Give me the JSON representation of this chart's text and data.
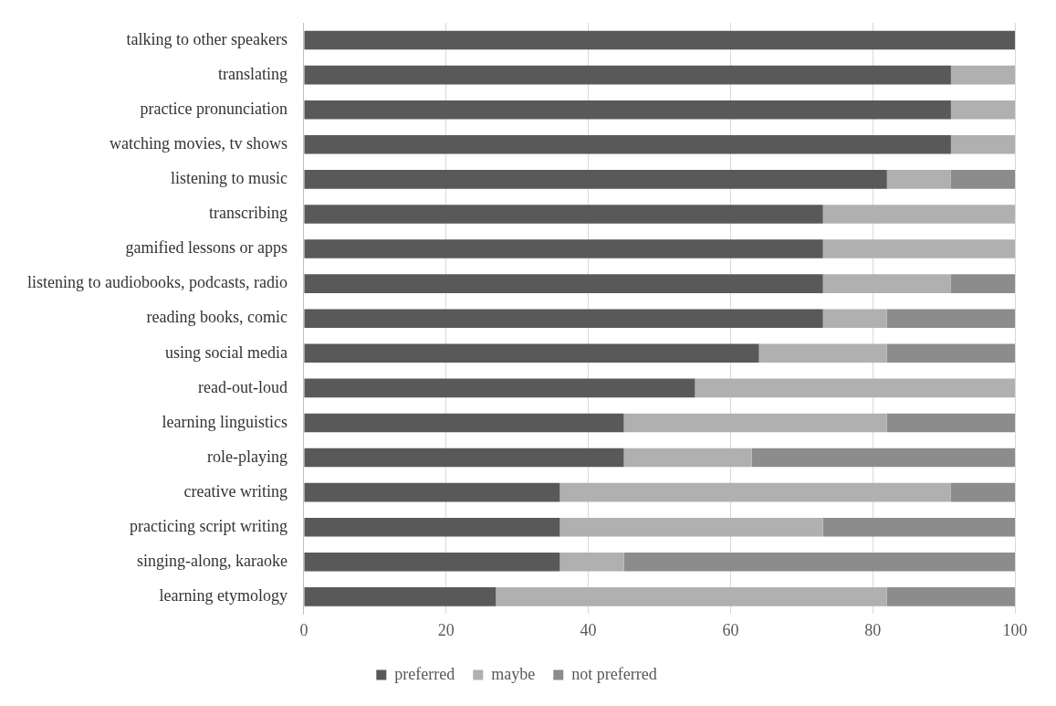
{
  "chart_data": {
    "type": "bar",
    "orientation": "horizontal",
    "stacked": true,
    "categories": [
      "talking to other speakers",
      "translating",
      "practice pronunciation",
      "watching movies, tv shows",
      "listening to music",
      "transcribing",
      "gamified lessons or apps",
      "listening to audiobooks, podcasts, radio",
      "reading books, comic",
      "using social media",
      "read-out-loud",
      "learning linguistics",
      "role-playing",
      "creative writing",
      "practicing script writing",
      "singing-along, karaoke",
      "learning etymology"
    ],
    "series": [
      {
        "name": "preferred",
        "color": "#595959",
        "values": [
          100,
          91,
          91,
          91,
          82,
          73,
          73,
          73,
          73,
          64,
          55,
          45,
          45,
          36,
          36,
          36,
          27
        ]
      },
      {
        "name": "maybe",
        "color": "#b0b0b0",
        "values": [
          0,
          9,
          9,
          9,
          9,
          27,
          27,
          18,
          9,
          18,
          45,
          37,
          18,
          55,
          37,
          9,
          55
        ]
      },
      {
        "name": "not preferred",
        "color": "#8c8c8c",
        "values": [
          0,
          0,
          0,
          0,
          9,
          0,
          0,
          9,
          18,
          18,
          0,
          18,
          37,
          9,
          27,
          55,
          18
        ]
      }
    ],
    "xlim": [
      0,
      100
    ],
    "xticks": [
      0,
      20,
      40,
      60,
      80,
      100
    ],
    "grid": "x",
    "legend": "bottom"
  }
}
